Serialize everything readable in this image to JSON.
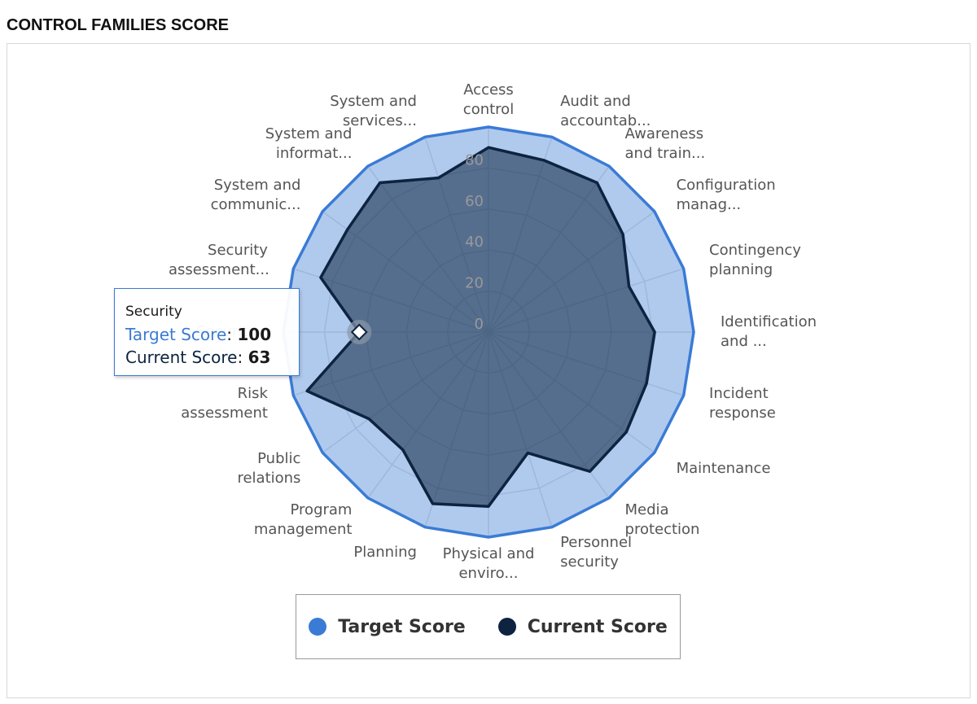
{
  "title": "CONTROL FAMILIES SCORE",
  "chart_data": {
    "type": "radar",
    "categories": [
      "Access control",
      "Audit and accountab...",
      "Awareness and train...",
      "Configuration manag...",
      "Contingency planning",
      "Identification and ...",
      "Incident response",
      "Maintenance",
      "Media protection",
      "Personnel security",
      "Physical and enviro...",
      "Planning",
      "Program management",
      "Public relations",
      "Risk assessment",
      "Security",
      "Security assessment...",
      "System and communic...",
      "System and informat...",
      "System and services..."
    ],
    "series": [
      {
        "name": "Target Score",
        "color": "#3a7bd5",
        "values": [
          100,
          100,
          100,
          100,
          100,
          100,
          100,
          100,
          100,
          100,
          100,
          100,
          100,
          100,
          100,
          100,
          100,
          100,
          100,
          100
        ]
      },
      {
        "name": "Current Score",
        "color": "#0d2340",
        "values": [
          90,
          88,
          90,
          81,
          72,
          81,
          81,
          83,
          84,
          62,
          85,
          88,
          71,
          72,
          93,
          63,
          86,
          85,
          90,
          79
        ]
      }
    ],
    "ylim": [
      0,
      100
    ],
    "yticks": [
      0,
      20,
      40,
      60,
      80
    ],
    "grid": true,
    "legend": "bottom"
  }
}
